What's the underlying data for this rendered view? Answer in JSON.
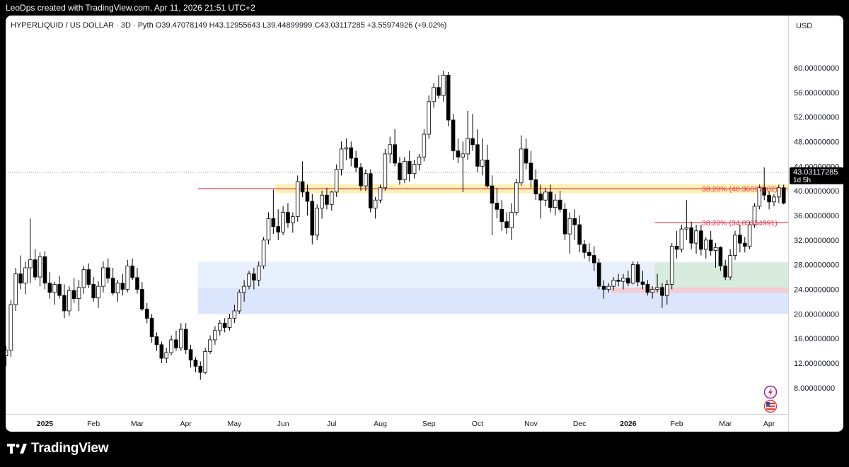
{
  "header": {
    "created_by": "LeoDps created with TradingView.com, Apr 11, 2026 21:51 UTC+2"
  },
  "footer": {
    "brand": "TradingView"
  },
  "colors": {
    "up_body": "#ffffff",
    "down_body": "#000000",
    "wick": "#000000",
    "fib_line": "#f23645",
    "yellow_zone": "#fff0b3",
    "blue_zone": "#dbe5fb",
    "blue_zone_light": "#e8effd",
    "green_zone": "#d7ecdc",
    "red_zone": "#f2cdd3"
  },
  "chart_data": {
    "type": "candlestick",
    "title": "",
    "legend": {
      "symbol": "HYPERLIQUID / US DOLLAR · 3D · Pyth",
      "open_label": "O",
      "open": "39.47078149",
      "high_label": "H",
      "high": "43.12955643",
      "low_label": "L",
      "low": "39.44899999",
      "close_label": "C",
      "close": "43.03117285",
      "change": "+3.55974926 (+9.02%)"
    },
    "y_axis": {
      "currency": "USD",
      "scale": "linear",
      "range": [
        5.0,
        65.5
      ],
      "ticks": [
        {
          "v": 8,
          "label": "8.00000000"
        },
        {
          "v": 12,
          "label": "12.00000000"
        },
        {
          "v": 16,
          "label": "16.00000000"
        },
        {
          "v": 20,
          "label": "20.00000000"
        },
        {
          "v": 24,
          "label": "24.00000000"
        },
        {
          "v": 28,
          "label": "28.00000000"
        },
        {
          "v": 32,
          "label": "32.00000000"
        },
        {
          "v": 36,
          "label": "36.00000000"
        },
        {
          "v": 40,
          "label": "40.00000000"
        },
        {
          "v": 44,
          "label": "44.00000000"
        },
        {
          "v": 48,
          "label": "48.00000000"
        },
        {
          "v": 52,
          "label": "52.00000000"
        },
        {
          "v": 56,
          "label": "56.00000000"
        },
        {
          "v": 60,
          "label": "60.00000000"
        }
      ]
    },
    "x_axis": {
      "labels": [
        {
          "i": 8,
          "label": "2025",
          "bold": true
        },
        {
          "i": 18,
          "label": "Feb"
        },
        {
          "i": 27,
          "label": "Mar"
        },
        {
          "i": 37,
          "label": "Apr"
        },
        {
          "i": 47,
          "label": "May"
        },
        {
          "i": 57,
          "label": "Jun"
        },
        {
          "i": 67,
          "label": "Jul"
        },
        {
          "i": 77,
          "label": "Aug"
        },
        {
          "i": 87,
          "label": "Sep"
        },
        {
          "i": 97,
          "label": "Oct"
        },
        {
          "i": 108,
          "label": "Nov"
        },
        {
          "i": 118,
          "label": "Dec"
        },
        {
          "i": 128,
          "label": "2026",
          "bold": true
        },
        {
          "i": 138,
          "label": "Feb"
        },
        {
          "i": 148,
          "label": "Mar"
        },
        {
          "i": 157,
          "label": "Apr"
        }
      ]
    },
    "price_tag": {
      "value": 43.03117285,
      "label": "43.03117285",
      "countdown": "1d 5h"
    },
    "zones": [
      {
        "type": "blue-zone",
        "i0": 39.5,
        "i1": 163.5,
        "y0": 20.0,
        "y1": 28.5,
        "color": "#e8effd"
      },
      {
        "type": "blue-zone",
        "i0": 39.5,
        "i1": 163.5,
        "y0": 20.0,
        "y1": 24.2,
        "color": "#dbe5fb"
      },
      {
        "type": "yellow-zone",
        "i0": 55.5,
        "i1": 163.5,
        "y0": 39.6,
        "y1": 41.1,
        "color": "#fff0b3"
      },
      {
        "type": "green-zone",
        "i0": 133.5,
        "i1": 163.5,
        "y0": 24.3,
        "y1": 28.3,
        "color": "#d7ecdc"
      },
      {
        "type": "red-zone",
        "i0": 124.5,
        "i1": 163.5,
        "y0": 23.4,
        "y1": 24.3,
        "color": "#f2cdd3"
      }
    ],
    "fib_levels": [
      {
        "label": "38.20% (40.36697202)",
        "price": 40.36697202,
        "i0": 39.5,
        "i1": 163.5
      },
      {
        "label": "38.20% (34.85354991)",
        "price": 34.85354991,
        "i0": 133.5,
        "i1": 163.5
      }
    ],
    "candles": [
      [
        13.2,
        14.8,
        11.5,
        14.1
      ],
      [
        14.1,
        22.2,
        13.0,
        21.5
      ],
      [
        21.5,
        27.5,
        20.5,
        26.5
      ],
      [
        26.5,
        29.5,
        24.0,
        25.0
      ],
      [
        25.0,
        28.5,
        23.2,
        27.5
      ],
      [
        27.5,
        35.5,
        25.0,
        28.8
      ],
      [
        28.8,
        30.5,
        25.5,
        26.0
      ],
      [
        26.0,
        30.0,
        24.5,
        29.3
      ],
      [
        29.3,
        30.2,
        24.0,
        25.0
      ],
      [
        25.0,
        26.8,
        22.5,
        23.5
      ],
      [
        23.5,
        25.2,
        21.5,
        24.8
      ],
      [
        24.8,
        26.2,
        22.5,
        23.0
      ],
      [
        23.0,
        24.8,
        19.3,
        20.5
      ],
      [
        20.5,
        24.5,
        19.7,
        23.8
      ],
      [
        23.8,
        25.8,
        21.8,
        22.5
      ],
      [
        22.5,
        25.5,
        20.5,
        24.3
      ],
      [
        24.3,
        27.8,
        23.3,
        27.2
      ],
      [
        27.2,
        28.2,
        24.2,
        24.8
      ],
      [
        24.8,
        26.0,
        22.0,
        22.6
      ],
      [
        22.6,
        25.3,
        21.0,
        24.5
      ],
      [
        24.5,
        28.5,
        23.5,
        27.5
      ],
      [
        27.5,
        29.0,
        25.0,
        25.8
      ],
      [
        25.8,
        27.5,
        23.0,
        23.4
      ],
      [
        23.4,
        25.5,
        22.0,
        25.0
      ],
      [
        25.0,
        26.5,
        23.0,
        24.0
      ],
      [
        24.0,
        28.8,
        23.5,
        27.8
      ],
      [
        27.8,
        29.0,
        25.5,
        25.9
      ],
      [
        25.9,
        27.5,
        23.3,
        24.0
      ],
      [
        24.0,
        25.2,
        20.5,
        20.8
      ],
      [
        20.8,
        21.8,
        18.5,
        19.3
      ],
      [
        19.3,
        20.0,
        15.3,
        16.3
      ],
      [
        16.3,
        17.0,
        14.0,
        15.0
      ],
      [
        15.0,
        15.5,
        12.0,
        12.8
      ],
      [
        12.8,
        14.5,
        12.0,
        13.7
      ],
      [
        13.7,
        16.5,
        13.3,
        15.8
      ],
      [
        15.8,
        17.3,
        14.0,
        14.5
      ],
      [
        14.5,
        18.5,
        14.0,
        17.5
      ],
      [
        17.5,
        18.5,
        13.5,
        14.2
      ],
      [
        14.2,
        15.0,
        11.3,
        12.5
      ],
      [
        12.5,
        13.0,
        10.5,
        11.5
      ],
      [
        11.5,
        12.3,
        9.3,
        10.5
      ],
      [
        10.5,
        14.5,
        10.2,
        13.9
      ],
      [
        13.9,
        16.5,
        13.5,
        15.8
      ],
      [
        15.8,
        18.0,
        15.0,
        17.3
      ],
      [
        17.3,
        19.0,
        16.5,
        18.5
      ],
      [
        18.5,
        19.3,
        17.0,
        17.8
      ],
      [
        17.8,
        20.0,
        17.3,
        19.3
      ],
      [
        19.3,
        21.5,
        18.5,
        20.5
      ],
      [
        20.5,
        24.0,
        20.0,
        23.5
      ],
      [
        23.5,
        25.5,
        22.0,
        24.5
      ],
      [
        24.5,
        27.0,
        24.0,
        26.5
      ],
      [
        26.5,
        27.5,
        24.0,
        25.5
      ],
      [
        25.5,
        28.5,
        24.5,
        27.8
      ],
      [
        27.8,
        32.5,
        27.3,
        32.0
      ],
      [
        32.0,
        36.5,
        31.3,
        35.5
      ],
      [
        35.5,
        40.2,
        33.0,
        34.2
      ],
      [
        34.2,
        37.0,
        32.0,
        33.3
      ],
      [
        33.3,
        37.5,
        32.8,
        36.5
      ],
      [
        36.5,
        38.0,
        34.0,
        34.8
      ],
      [
        34.8,
        36.5,
        33.2,
        35.8
      ],
      [
        35.8,
        42.5,
        35.0,
        41.5
      ],
      [
        41.5,
        44.8,
        39.0,
        39.8
      ],
      [
        39.8,
        41.0,
        36.0,
        38.3
      ],
      [
        38.3,
        39.5,
        31.3,
        32.8
      ],
      [
        32.8,
        37.8,
        32.0,
        37.2
      ],
      [
        37.2,
        40.0,
        35.5,
        39.3
      ],
      [
        39.3,
        40.5,
        37.0,
        37.8
      ],
      [
        37.8,
        40.0,
        36.8,
        39.8
      ],
      [
        39.8,
        44.3,
        39.0,
        43.5
      ],
      [
        43.5,
        48.0,
        42.5,
        46.8
      ],
      [
        46.8,
        48.5,
        45.0,
        47.0
      ],
      [
        47.0,
        48.0,
        44.0,
        45.3
      ],
      [
        45.3,
        46.5,
        43.0,
        43.8
      ],
      [
        43.8,
        44.5,
        40.0,
        40.8
      ],
      [
        40.8,
        43.5,
        40.0,
        42.8
      ],
      [
        42.8,
        43.5,
        36.5,
        37.2
      ],
      [
        37.2,
        39.0,
        35.5,
        38.5
      ],
      [
        38.5,
        41.0,
        38.0,
        40.5
      ],
      [
        40.5,
        46.8,
        40.0,
        46.0
      ],
      [
        46.0,
        48.8,
        44.5,
        47.5
      ],
      [
        47.5,
        50.0,
        44.0,
        44.5
      ],
      [
        44.5,
        45.5,
        41.0,
        41.8
      ],
      [
        41.8,
        45.5,
        41.3,
        44.8
      ],
      [
        44.8,
        46.5,
        41.5,
        42.8
      ],
      [
        42.8,
        45.0,
        42.0,
        44.3
      ],
      [
        44.3,
        46.0,
        43.3,
        45.5
      ],
      [
        45.5,
        50.0,
        44.8,
        49.2
      ],
      [
        49.2,
        55.5,
        48.5,
        54.5
      ],
      [
        54.5,
        57.5,
        53.5,
        56.8
      ],
      [
        56.8,
        58.8,
        55.0,
        55.5
      ],
      [
        55.5,
        59.5,
        54.5,
        58.8
      ],
      [
        58.8,
        59.3,
        50.5,
        51.5
      ],
      [
        51.5,
        52.5,
        45.0,
        46.5
      ],
      [
        46.5,
        48.5,
        44.5,
        45.5
      ],
      [
        45.5,
        48.0,
        39.8,
        46.0
      ],
      [
        46.0,
        53.0,
        45.0,
        48.5
      ],
      [
        48.5,
        52.5,
        46.5,
        47.5
      ],
      [
        47.5,
        50.0,
        43.0,
        44.0
      ],
      [
        44.0,
        48.5,
        42.5,
        45.0
      ],
      [
        45.0,
        47.5,
        40.5,
        40.8
      ],
      [
        40.8,
        42.5,
        32.8,
        38.0
      ],
      [
        38.0,
        40.5,
        35.5,
        37.0
      ],
      [
        37.0,
        38.5,
        33.5,
        35.0
      ],
      [
        35.0,
        36.5,
        33.0,
        34.0
      ],
      [
        34.0,
        38.0,
        32.0,
        36.5
      ],
      [
        36.5,
        42.0,
        36.0,
        41.3
      ],
      [
        41.3,
        49.0,
        40.8,
        46.8
      ],
      [
        46.8,
        48.5,
        43.5,
        44.5
      ],
      [
        44.5,
        46.5,
        40.5,
        41.8
      ],
      [
        41.8,
        43.5,
        38.5,
        39.5
      ],
      [
        39.5,
        41.0,
        35.5,
        38.5
      ],
      [
        38.5,
        40.5,
        37.5,
        39.8
      ],
      [
        39.8,
        41.0,
        36.5,
        37.3
      ],
      [
        37.3,
        39.5,
        36.0,
        38.5
      ],
      [
        38.5,
        40.0,
        36.5,
        37.0
      ],
      [
        37.0,
        38.0,
        32.0,
        33.0
      ],
      [
        33.0,
        36.5,
        29.8,
        35.5
      ],
      [
        35.5,
        37.0,
        32.0,
        34.5
      ],
      [
        34.5,
        36.0,
        30.0,
        31.3
      ],
      [
        31.3,
        32.0,
        29.0,
        30.0
      ],
      [
        30.0,
        31.5,
        28.5,
        29.5
      ],
      [
        29.5,
        31.0,
        27.0,
        28.3
      ],
      [
        28.3,
        29.0,
        24.0,
        24.5
      ],
      [
        24.5,
        25.5,
        22.5,
        24.0
      ],
      [
        24.0,
        25.0,
        23.5,
        24.5
      ],
      [
        24.5,
        26.0,
        23.8,
        25.5
      ],
      [
        25.5,
        26.5,
        24.5,
        25.3
      ],
      [
        25.3,
        26.5,
        24.0,
        25.8
      ],
      [
        25.8,
        27.0,
        24.5,
        25.0
      ],
      [
        25.0,
        28.5,
        24.8,
        28.0
      ],
      [
        28.0,
        28.5,
        24.5,
        25.2
      ],
      [
        25.2,
        27.0,
        24.0,
        24.8
      ],
      [
        24.8,
        25.5,
        23.0,
        23.5
      ],
      [
        23.5,
        24.5,
        22.5,
        24.0
      ],
      [
        24.0,
        26.5,
        23.5,
        24.3
      ],
      [
        24.3,
        25.0,
        21.0,
        23.0
      ],
      [
        23.0,
        25.5,
        21.5,
        24.8
      ],
      [
        24.8,
        31.5,
        24.0,
        31.0
      ],
      [
        31.0,
        33.5,
        29.0,
        30.5
      ],
      [
        30.5,
        34.5,
        30.0,
        33.8
      ],
      [
        33.8,
        38.5,
        32.0,
        34.0
      ],
      [
        34.0,
        35.0,
        30.5,
        31.5
      ],
      [
        31.5,
        34.5,
        29.8,
        33.5
      ],
      [
        33.5,
        34.5,
        29.5,
        30.5
      ],
      [
        30.5,
        32.5,
        29.0,
        32.0
      ],
      [
        32.0,
        33.5,
        29.5,
        30.3
      ],
      [
        30.3,
        31.5,
        27.5,
        30.8
      ],
      [
        30.8,
        31.0,
        27.0,
        27.8
      ],
      [
        27.8,
        28.8,
        25.5,
        26.0
      ],
      [
        26.0,
        30.5,
        25.5,
        29.5
      ],
      [
        29.5,
        33.5,
        28.8,
        32.8
      ],
      [
        32.8,
        34.5,
        30.0,
        31.5
      ],
      [
        31.5,
        32.5,
        30.0,
        31.0
      ],
      [
        31.0,
        35.0,
        30.5,
        34.5
      ],
      [
        34.5,
        38.0,
        34.0,
        37.5
      ],
      [
        37.5,
        41.0,
        37.0,
        40.5
      ],
      [
        40.5,
        43.8,
        38.5,
        39.3
      ],
      [
        39.3,
        40.0,
        37.0,
        38.2
      ],
      [
        38.2,
        39.5,
        37.5,
        39.0
      ],
      [
        39.0,
        41.0,
        38.0,
        40.5
      ],
      [
        40.5,
        41.0,
        37.8,
        38.0
      ],
      [
        38.0,
        38.5,
        35.5,
        36.0
      ],
      [
        36.0,
        37.5,
        35.5,
        36.8
      ],
      [
        36.8,
        41.0,
        36.3,
        39.47
      ],
      [
        39.47,
        43.13,
        39.45,
        43.03
      ]
    ]
  }
}
